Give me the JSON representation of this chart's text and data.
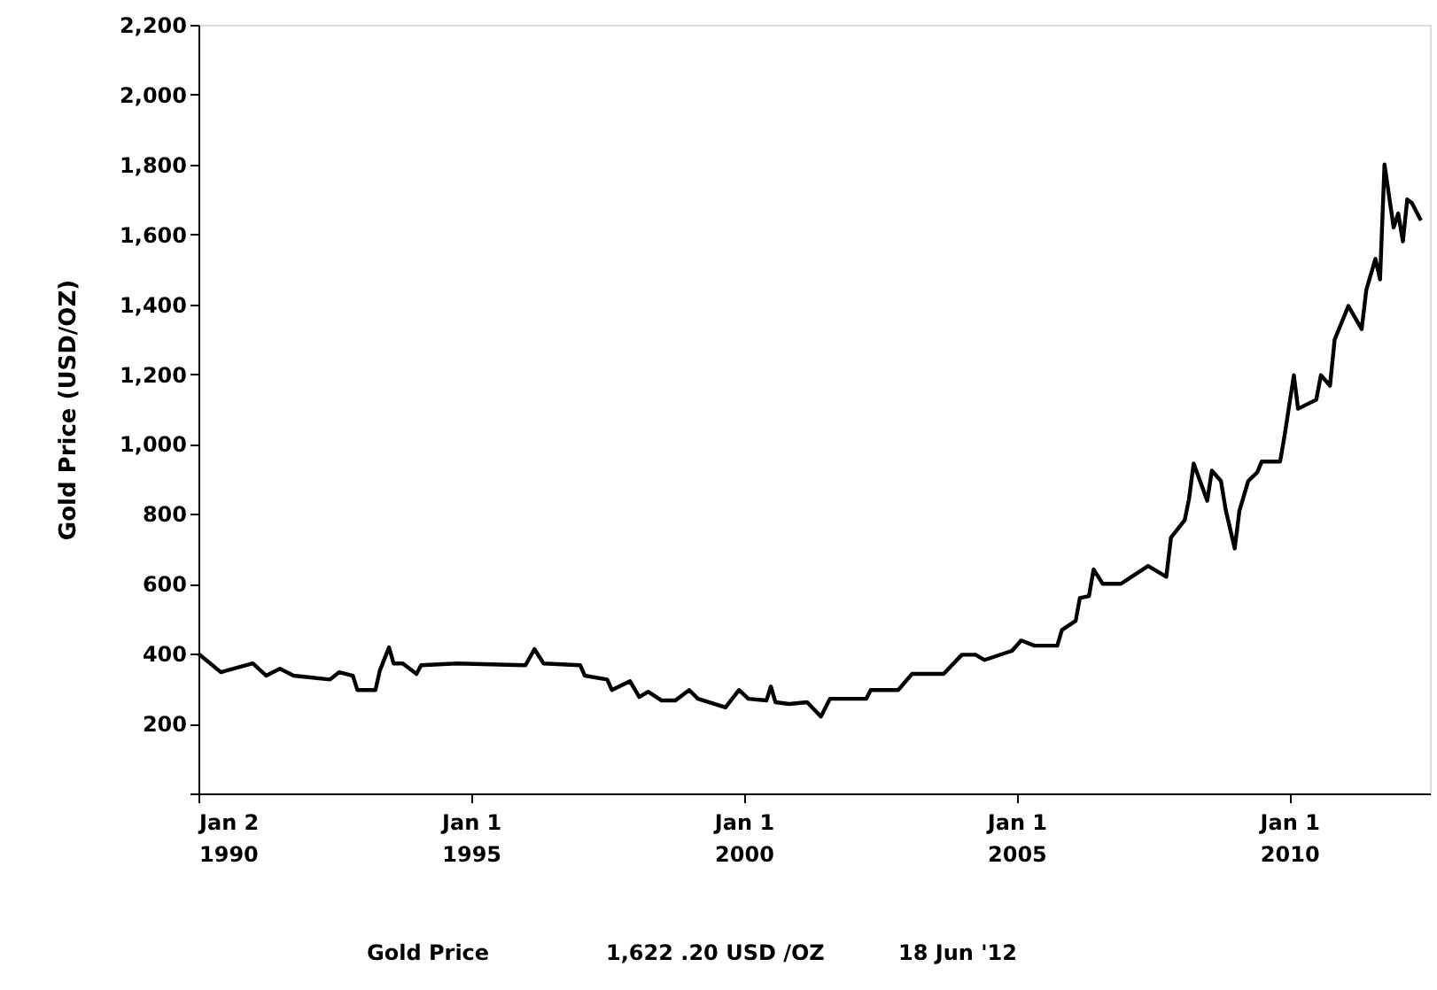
{
  "chart_data": {
    "type": "line",
    "ylabel": "Gold Price (USD/OZ)",
    "x": [
      "1990-01-02",
      "1990-06",
      "1991-01",
      "1991-04",
      "1991-07",
      "1991-10",
      "1992-06",
      "1992-08",
      "1992-11",
      "1992-12",
      "1993-04",
      "1993-05",
      "1993-07",
      "1993-08",
      "1993-10",
      "1994-01",
      "1994-02",
      "1994-10",
      "1996-01",
      "1996-03",
      "1996-05",
      "1997-01",
      "1997-02",
      "1997-07",
      "1997-08",
      "1997-12",
      "1998-02",
      "1998-04",
      "1998-07",
      "1998-10",
      "1999-01",
      "1999-03",
      "1999-09",
      "1999-12",
      "2000-02",
      "2000-06",
      "2000-07",
      "2000-08",
      "2000-11",
      "2001-03",
      "2001-06",
      "2001-08",
      "2002-04",
      "2002-05",
      "2002-11",
      "2003-02",
      "2003-09",
      "2004-01",
      "2004-04",
      "2004-06",
      "2004-12",
      "2005-02",
      "2005-05",
      "2005-10",
      "2005-11",
      "2006-02",
      "2006-03",
      "2006-05",
      "2006-06",
      "2006-08",
      "2006-12",
      "2007-06",
      "2007-10",
      "2007-11",
      "2008-02",
      "2008-03",
      "2008-04",
      "2008-07",
      "2008-08",
      "2008-10",
      "2008-11",
      "2009-01",
      "2009-02",
      "2009-04",
      "2009-06",
      "2009-07",
      "2009-11",
      "2009-12",
      "2010-02",
      "2010-03",
      "2010-07",
      "2010-08",
      "2010-10",
      "2010-11",
      "2011-02",
      "2011-05",
      "2011-06",
      "2011-08",
      "2011-09",
      "2011-10",
      "2011-12",
      "2012-01",
      "2012-02",
      "2012-03",
      "2012-04",
      "2012-06"
    ],
    "series": [
      {
        "color": "#000000",
        "values": [
          400,
          347,
          372,
          337,
          357,
          337,
          326,
          347,
          337,
          296,
          296,
          352,
          418,
          372,
          372,
          342,
          367,
          372,
          367,
          413,
          372,
          367,
          337,
          326,
          296,
          321,
          276,
          291,
          266,
          266,
          296,
          271,
          246,
          296,
          271,
          266,
          306,
          261,
          256,
          261,
          220,
          271,
          271,
          296,
          296,
          342,
          342,
          397,
          397,
          382,
          408,
          438,
          423,
          423,
          468,
          494,
          559,
          565,
          641,
          600,
          600,
          651,
          620,
          732,
          782,
          843,
          944,
          838,
          924,
          894,
          813,
          701,
          808,
          894,
          919,
          950,
          950,
          1025,
          1197,
          1101,
          1127,
          1197,
          1167,
          1299,
          1395,
          1329,
          1441,
          1530,
          1471,
          1800,
          1620,
          1660,
          1580,
          1700,
          1690,
          1640
        ]
      }
    ],
    "xlim": [
      "1990-01-02",
      "2012-07-31"
    ],
    "xticks": [
      {
        "value": "1990-01-02",
        "label": "Jan 2\n1990"
      },
      {
        "value": "1995-01-01",
        "label": "Jan 1\n1995"
      },
      {
        "value": "2000-01-01",
        "label": "Jan 1\n2000"
      },
      {
        "value": "2005-01-01",
        "label": "Jan 1\n2005"
      },
      {
        "value": "2010-01-01",
        "label": "Jan 1\n2010"
      }
    ],
    "ylim": [
      0,
      2200
    ],
    "yticks": [
      {
        "value": 0,
        "label": null
      },
      {
        "value": 200,
        "label": "200"
      },
      {
        "value": 400,
        "label": "400"
      },
      {
        "value": 600,
        "label": "600"
      },
      {
        "value": 800,
        "label": "800"
      },
      {
        "value": 1000,
        "label": "1,000"
      },
      {
        "value": 1200,
        "label": "1,200"
      },
      {
        "value": 1400,
        "label": "1,400"
      },
      {
        "value": 1600,
        "label": "1,600"
      },
      {
        "value": 1800,
        "label": "1,800"
      },
      {
        "value": 2000,
        "label": "2,000"
      },
      {
        "value": 2200,
        "label": "2,200"
      }
    ],
    "grid": false,
    "line_style": "solid",
    "annotations": [
      "Gold Price",
      "1,622 .20 USD /OZ",
      "18 Jun '12"
    ]
  }
}
